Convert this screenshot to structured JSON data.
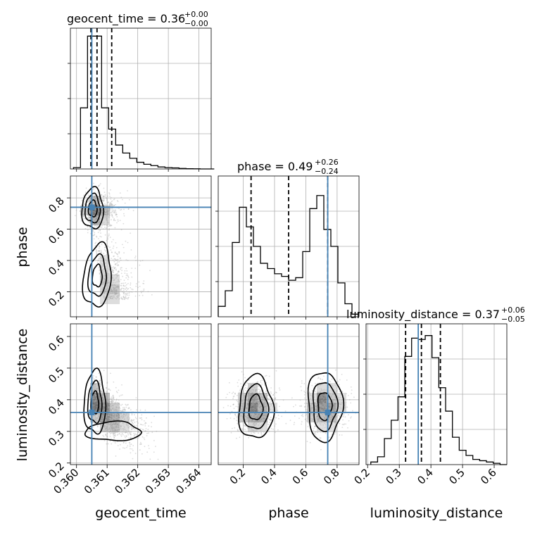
{
  "chart_data": {
    "type": "corner",
    "colors": {
      "truth": "#4682b4",
      "line": "#000000",
      "grid": "#b0b0b0",
      "point": "#9a9a9a"
    },
    "parameters": [
      {
        "name": "geocent_time",
        "range": [
          0.3598,
          0.3644
        ],
        "ticks": [
          0.36,
          0.361,
          0.362,
          0.363,
          0.364
        ],
        "tick_labels": [
          "0.360",
          "0.361",
          "0.362",
          "0.363",
          "0.364"
        ],
        "axis_label": "geocent_time",
        "title_main": "geocent_time = 0.36",
        "title_plus": "+0.00",
        "title_minus": "−0.00",
        "truth": 0.3605,
        "quantiles": [
          0.36047,
          0.36067,
          0.36115
        ],
        "hist": {
          "edges_start": 0.3599,
          "bin_width": 0.00023,
          "counts": [
            0.01,
            0.46,
            1.0,
            1.0,
            0.46,
            0.3,
            0.18,
            0.12,
            0.08,
            0.05,
            0.035,
            0.025,
            0.015,
            0.01,
            0.008,
            0.004,
            0.002,
            0.001,
            0.0,
            0.0
          ],
          "ymax": 1.06
        }
      },
      {
        "name": "phase",
        "range": [
          0.04,
          0.94
        ],
        "ticks": [
          0.2,
          0.4,
          0.6,
          0.8
        ],
        "tick_labels": [
          "0.2",
          "0.4",
          "0.6",
          "0.8"
        ],
        "axis_label": "phase",
        "title_main": "phase = 0.49",
        "title_plus": "+0.26",
        "title_minus": "−0.24",
        "truth": 0.74,
        "quantiles": [
          0.25,
          0.49,
          0.74
        ],
        "hist": {
          "edges_start": 0.04,
          "bin_width": 0.045,
          "counts": [
            0.08,
            0.2,
            0.57,
            0.84,
            0.69,
            0.54,
            0.41,
            0.37,
            0.33,
            0.31,
            0.28,
            0.3,
            0.5,
            0.83,
            0.93,
            0.67,
            0.54,
            0.26,
            0.1,
            0.02
          ],
          "ymax": 1.08
        }
      },
      {
        "name": "luminosity_distance",
        "range": [
          0.195,
          0.64
        ],
        "ticks": [
          0.2,
          0.3,
          0.4,
          0.5,
          0.6
        ],
        "tick_labels": [
          "0.2",
          "0.3",
          "0.4",
          "0.5",
          "0.6"
        ],
        "axis_label": "luminosity_distance",
        "title_main": "luminosity_distance = 0.37",
        "title_plus": "+0.06",
        "title_minus": "−0.05",
        "truth": 0.36,
        "quantiles": [
          0.32,
          0.37,
          0.43
        ],
        "hist": {
          "edges_start": 0.21,
          "bin_width": 0.0215,
          "counts": [
            0.02,
            0.06,
            0.2,
            0.34,
            0.52,
            0.83,
            0.97,
            0.96,
            0.99,
            0.82,
            0.59,
            0.41,
            0.21,
            0.11,
            0.07,
            0.04,
            0.03,
            0.02,
            0.01,
            0.0
          ],
          "ymax": 1.08
        }
      }
    ]
  }
}
